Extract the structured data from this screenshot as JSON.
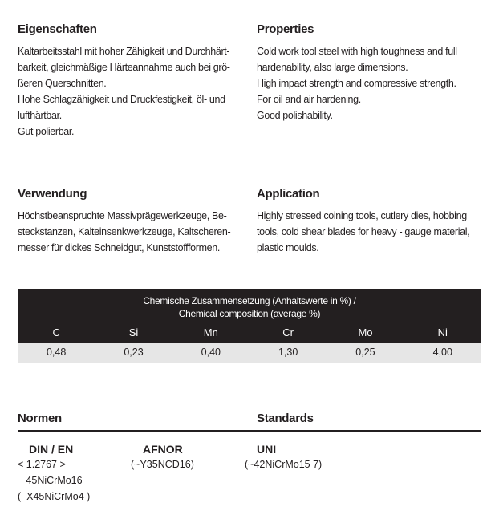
{
  "properties": {
    "de_heading": "Eigenschaften",
    "de_lines": [
      "Kaltarbeitsstahl mit hoher Zähigkeit und Durchhärt-",
      "barkeit, gleichmäßige Härteannahme auch bei grö-",
      "ßeren Querschnitten.",
      "Hohe Schlagzähigkeit und Druckfestigkeit,  öl- und",
      "lufthärtbar.",
      "Gut polierbar."
    ],
    "en_heading": "Properties",
    "en_lines": [
      "Cold work tool steel with high toughness and full",
      "hardenability, also large dimensions.",
      "High impact strength and compressive strength.",
      "For oil and air hardening.",
      "Good polishability."
    ]
  },
  "application": {
    "de_heading": "Verwendung",
    "de_lines": [
      "Höchstbeanspruchte Massivprägewerkzeuge, Be-",
      "steckstanzen, Kalteinsenkwerkzeuge, Kaltscheren-",
      "messer für dickes Schneidgut, Kunststoffformen."
    ],
    "en_heading": "Application",
    "en_lines": [
      "Highly stressed coining tools, cutlery dies, hobbing",
      "tools, cold shear blades for heavy - gauge material,",
      "plastic moulds."
    ]
  },
  "composition": {
    "title_de": "Chemische Zusammensetzung (Anhaltswerte in %) /",
    "title_en": "Chemical  composition (average %)",
    "elements": [
      "C",
      "Si",
      "Mn",
      "Cr",
      "Mo",
      "Ni"
    ],
    "values": [
      "0,48",
      "0,23",
      "0,40",
      "1,30",
      "0,25",
      "4,00"
    ]
  },
  "standards": {
    "de_heading": "Normen",
    "en_heading": "Standards",
    "din_heading": "DIN / EN",
    "din_lines": [
      "< 1.2767 >",
      "   45NiCrMo16",
      "(  X45NiCrMo4 )"
    ],
    "afnor_heading": "AFNOR",
    "afnor_value": "(~Y35NCD16)",
    "uni_heading": "UNI",
    "uni_value": "(~42NiCrMo15 7)"
  }
}
